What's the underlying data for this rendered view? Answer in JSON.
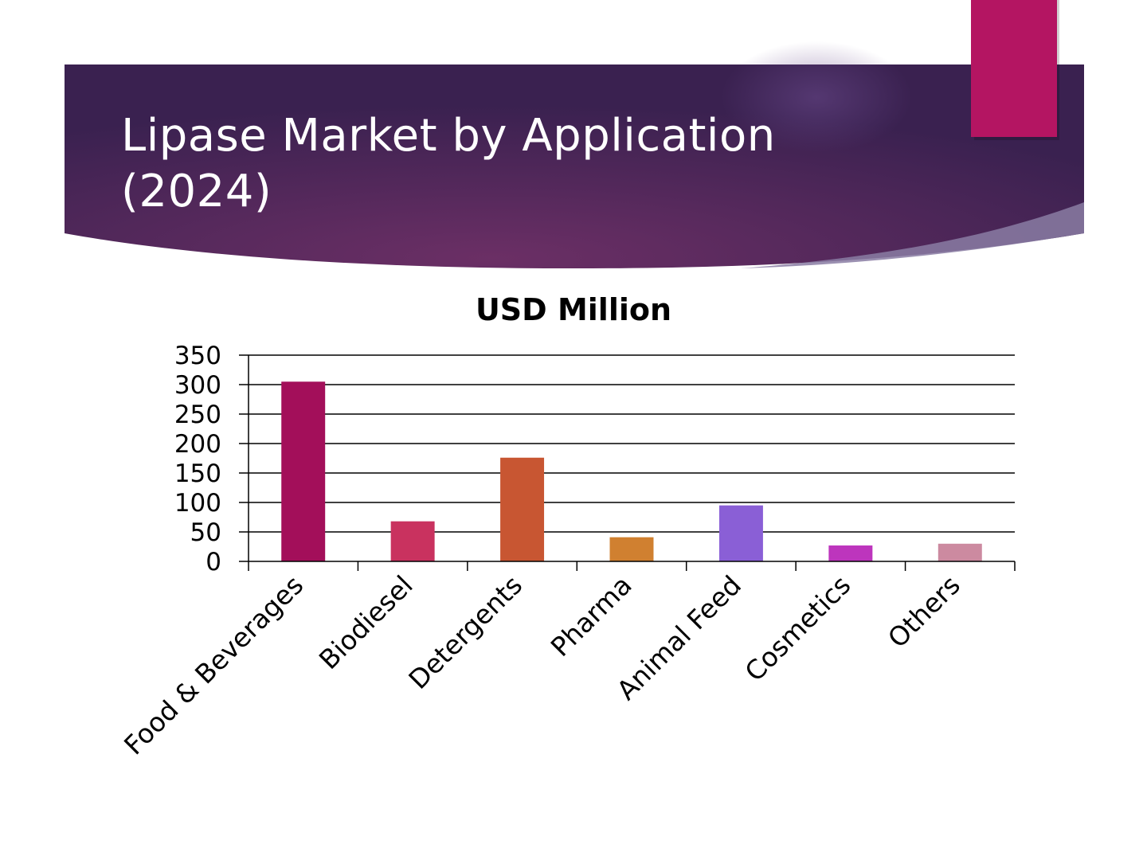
{
  "slide": {
    "title": "Lipase Market by Application (2024)",
    "colors": {
      "header_dark": "#3a2150",
      "header_mid": "#6b2f65",
      "accent_tab": "#b41562"
    }
  },
  "chart_data": {
    "type": "bar",
    "title": "USD Million",
    "xlabel": "",
    "ylabel": "",
    "categories": [
      "Food & Beverages",
      "Biodiesel",
      "Detergents",
      "Pharma",
      "Animal Feed",
      "Cosmetics",
      "Others"
    ],
    "values": [
      305,
      68,
      176,
      41,
      95,
      27,
      30
    ],
    "colors": [
      "#a30f5a",
      "#c9325f",
      "#c85632",
      "#d08030",
      "#8a5fd6",
      "#bd35bd",
      "#cc8aa0"
    ],
    "ylim": [
      0,
      350
    ],
    "yticks": [
      0,
      50,
      100,
      150,
      200,
      250,
      300,
      350
    ],
    "grid": true,
    "legend": "none"
  }
}
